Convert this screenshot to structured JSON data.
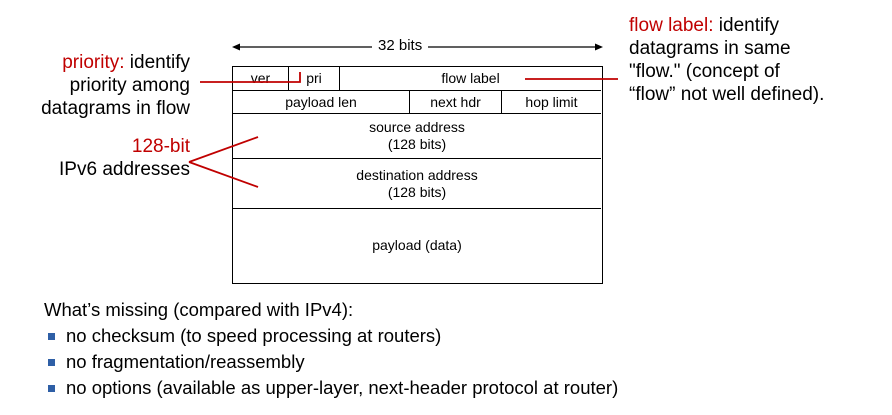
{
  "priority": {
    "term": "priority:",
    "text_line1": "identify",
    "text_line2": "priority among",
    "text_line3": "datagrams in flow"
  },
  "addresses": {
    "line1": "128-bit",
    "line2": "IPv6 addresses"
  },
  "flow_label_note": {
    "term": "flow label:",
    "text_line1": "identify",
    "text_line2": "datagrams in same",
    "text_line3": "\"flow.\" (concept of",
    "text_line4": "“flow” not well defined)."
  },
  "header": {
    "width_label": "32 bits",
    "ver": "ver",
    "pri": "pri",
    "flow_label": "flow label",
    "payload_len": "payload len",
    "next_hdr": "next hdr",
    "hop_limit": "hop limit",
    "source_address": "source address",
    "source_bits": "(128 bits)",
    "destination_address": "destination address",
    "destination_bits": "(128 bits)",
    "payload": "payload (data)"
  },
  "missing": {
    "heading": "What’s missing (compared with IPv4):",
    "items": [
      "no checksum (to speed processing at routers)",
      "no fragmentation/reassembly",
      "no options (available as upper-layer, next-header protocol at router)"
    ]
  },
  "colors": {
    "accent": "#c00000",
    "bullet": "#2e5fa6"
  }
}
